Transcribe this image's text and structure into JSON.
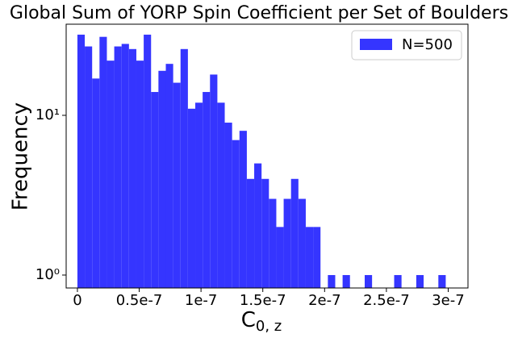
{
  "chart_data": {
    "type": "histogram",
    "title": "Global Sum of YORP Spin Coefficient per Set of Boulders",
    "xlabel": "C",
    "xlabel_subscript": "0, z",
    "ylabel": "Frequency",
    "series": [
      {
        "name": "N=500",
        "color": "#3535ff",
        "bins": [
          0,
          5.96e-09,
          1.192e-08,
          1.788e-08,
          2.384e-08,
          2.98e-08,
          3.576e-08,
          4.172e-08,
          4.768e-08,
          5.364e-08,
          5.96e-08,
          6.556e-08,
          7.152e-08,
          7.748e-08,
          8.344e-08,
          8.94e-08,
          9.536e-08,
          1.0132e-07,
          1.0728e-07,
          1.1324e-07,
          1.192e-07,
          1.2516e-07,
          1.3112e-07,
          1.3708e-07,
          1.4304e-07,
          1.49e-07,
          1.5496e-07,
          1.6092e-07,
          1.6688e-07,
          1.7284e-07,
          1.788e-07,
          1.8476e-07,
          1.9072e-07,
          1.9668e-07,
          2.0264e-07,
          2.086e-07,
          2.1456e-07,
          2.2052e-07,
          2.2648e-07,
          2.3244e-07,
          2.384e-07,
          2.4436e-07,
          2.5032e-07,
          2.5628e-07,
          2.6224e-07,
          2.682e-07,
          2.7416e-07,
          2.8012e-07,
          2.8608e-07,
          2.9204e-07,
          2.98e-07
        ],
        "values": [
          32,
          27,
          17,
          31,
          22,
          27,
          28,
          26,
          22,
          32,
          14,
          19,
          21,
          16,
          26,
          11,
          12,
          14,
          18,
          12,
          9,
          7,
          8,
          4,
          5,
          4,
          3,
          2,
          3,
          4,
          3,
          2,
          2,
          0,
          1,
          0,
          1,
          0,
          0,
          1,
          0,
          0,
          0,
          1,
          0,
          0,
          1,
          0,
          0,
          1
        ]
      }
    ],
    "xlim": [
      -9.1e-09,
      3.16e-07
    ],
    "xticks": [
      0,
      {
        "value": 5e-08,
        "label": "0.5e-7"
      },
      {
        "value": 1e-07,
        "label": "1e-7"
      },
      {
        "value": 1.5e-07,
        "label": "1.5e-7"
      },
      {
        "value": 2e-07,
        "label": "2e-7"
      },
      {
        "value": 2.5e-07,
        "label": "2.5e-7"
      },
      {
        "value": 3e-07,
        "label": "3e-7"
      }
    ],
    "ylim": [
      0.83,
      37.2
    ],
    "yscale": "log",
    "yticks": [
      {
        "value": 1,
        "label": "10⁰"
      },
      {
        "value": 10,
        "label": "10¹"
      }
    ],
    "legend": "upper right"
  }
}
